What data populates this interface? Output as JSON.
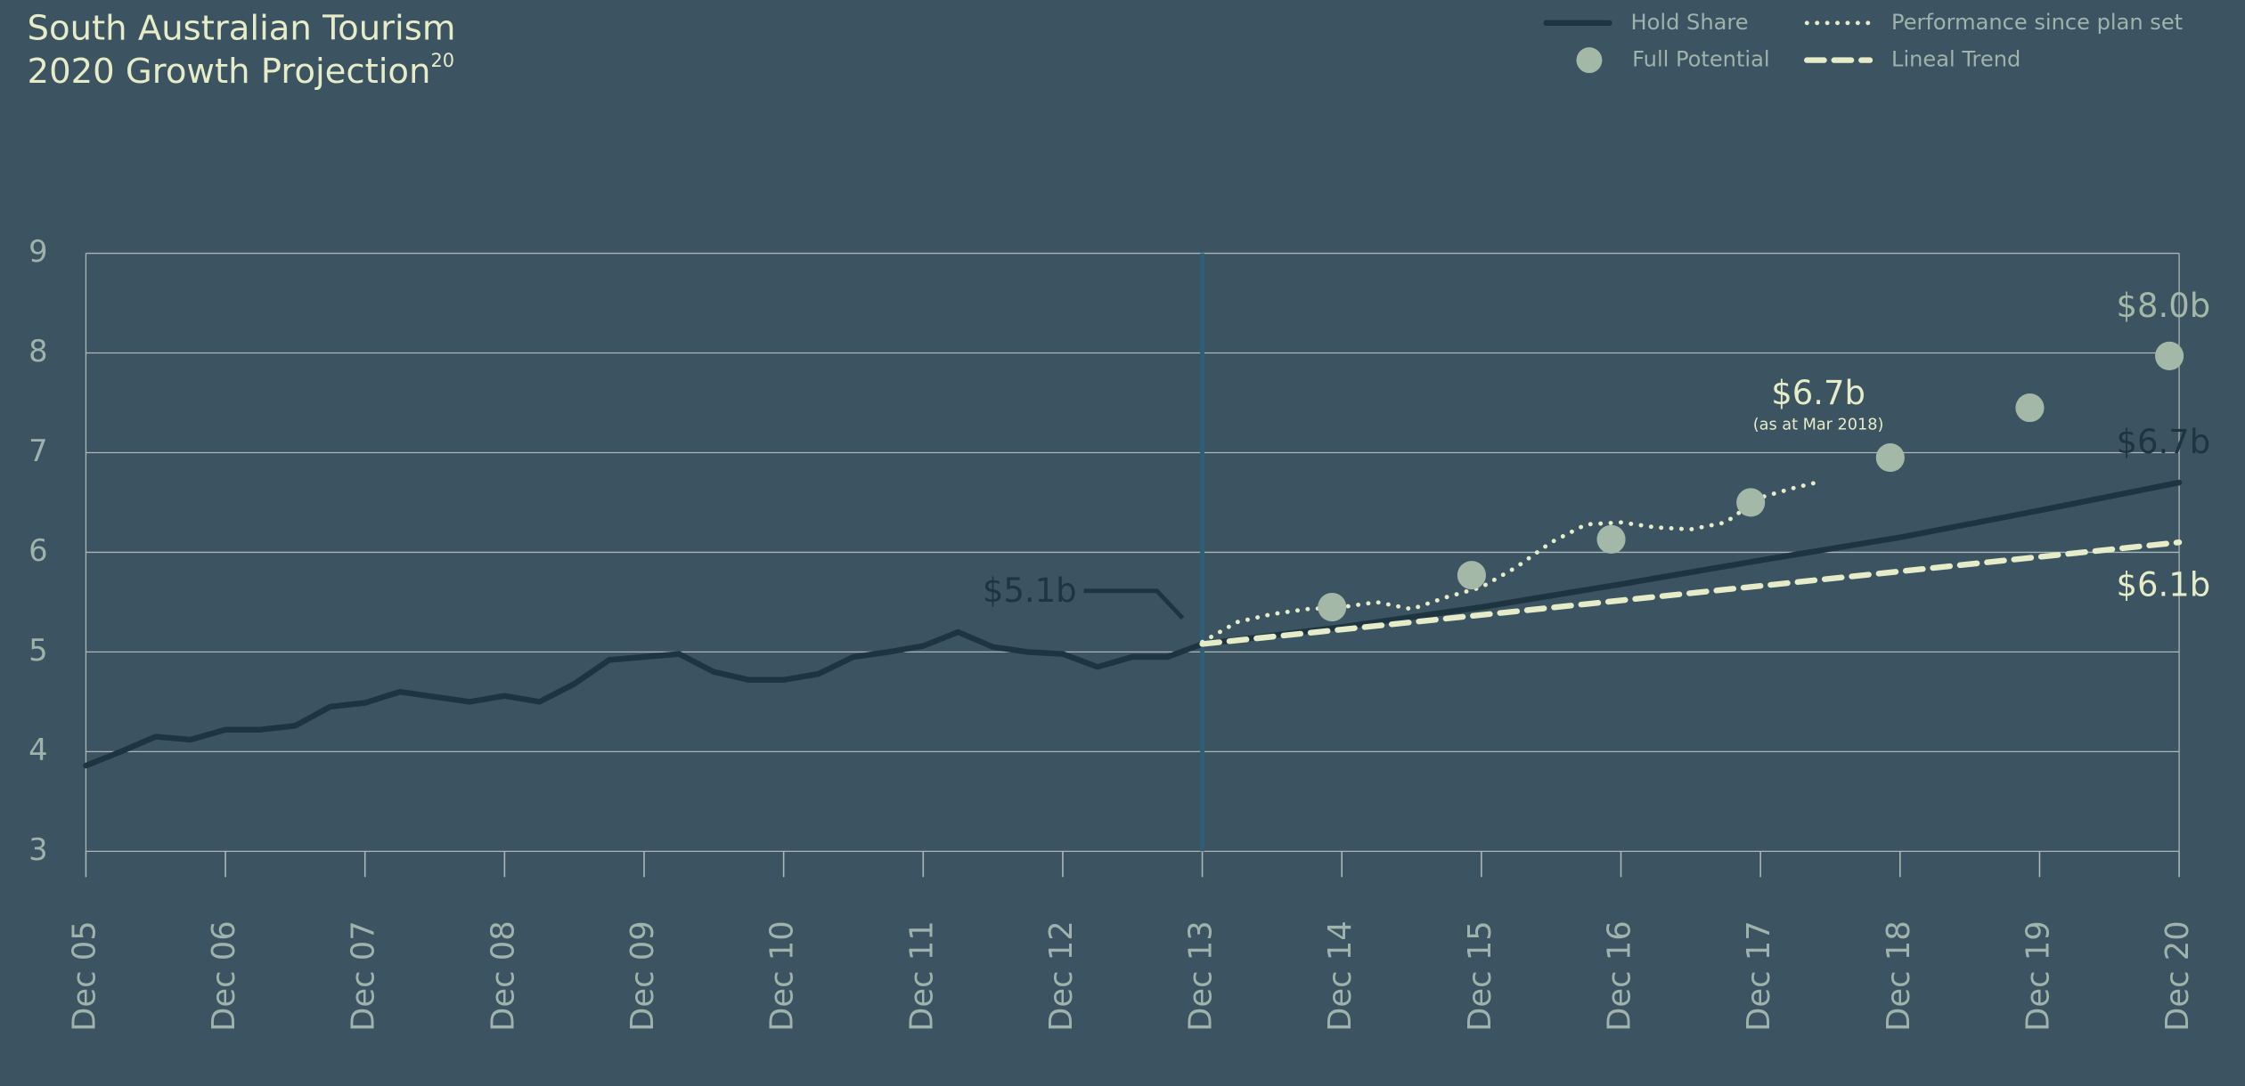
{
  "chart_data": {
    "type": "line",
    "title": "South Australian Tourism",
    "subtitle": "2020 Growth Projection",
    "title_footnote": "20",
    "xlim": [
      2005,
      2020
    ],
    "xticks": [
      {
        "value": 2005,
        "label": "Dec 05"
      },
      {
        "value": 2006,
        "label": "Dec 06"
      },
      {
        "value": 2007,
        "label": "Dec 07"
      },
      {
        "value": 2008,
        "label": "Dec 08"
      },
      {
        "value": 2009,
        "label": "Dec 09"
      },
      {
        "value": 2010,
        "label": "Dec 10"
      },
      {
        "value": 2011,
        "label": "Dec 11"
      },
      {
        "value": 2012,
        "label": "Dec 12"
      },
      {
        "value": 2013,
        "label": "Dec 13"
      },
      {
        "value": 2014,
        "label": "Dec 14"
      },
      {
        "value": 2015,
        "label": "Dec 15"
      },
      {
        "value": 2016,
        "label": "Dec 16"
      },
      {
        "value": 2017,
        "label": "Dec 17"
      },
      {
        "value": 2018,
        "label": "Dec 18"
      },
      {
        "value": 2019,
        "label": "Dec 19"
      },
      {
        "value": 2020,
        "label": "Dec 20"
      }
    ],
    "ylim": [
      3,
      9
    ],
    "yticks": [
      3,
      4,
      5,
      6,
      7,
      8,
      9
    ],
    "grid": true,
    "plan_line_x": 2013,
    "legend": "top-right",
    "series": [
      {
        "name": "Hold Share",
        "style": "solid",
        "color": "#1e3440",
        "x": [
          2005,
          2005.25,
          2005.5,
          2005.75,
          2006,
          2006.25,
          2006.5,
          2006.75,
          2007,
          2007.25,
          2007.5,
          2007.75,
          2008,
          2008.25,
          2008.5,
          2008.75,
          2009,
          2009.25,
          2009.5,
          2009.75,
          2010,
          2010.25,
          2010.5,
          2010.75,
          2011,
          2011.25,
          2011.5,
          2011.75,
          2012,
          2012.25,
          2012.5,
          2012.75,
          2013,
          2014,
          2015,
          2016,
          2017,
          2018,
          2019,
          2020
        ],
        "values": [
          3.86,
          4.0,
          4.15,
          4.12,
          4.22,
          4.22,
          4.26,
          4.45,
          4.49,
          4.6,
          4.55,
          4.5,
          4.56,
          4.5,
          4.68,
          4.92,
          4.95,
          4.98,
          4.8,
          4.72,
          4.72,
          4.78,
          4.95,
          5.0,
          5.06,
          5.2,
          5.05,
          5.0,
          4.98,
          4.85,
          4.95,
          4.95,
          5.08,
          5.25,
          5.45,
          5.68,
          5.92,
          6.15,
          6.42,
          6.7
        ]
      },
      {
        "name": "Performance since plan set",
        "style": "dotted",
        "color": "#e6ecc8",
        "x": [
          2013,
          2013.25,
          2013.5,
          2013.75,
          2014,
          2014.25,
          2014.5,
          2014.75,
          2015,
          2015.25,
          2015.5,
          2015.75,
          2016,
          2016.25,
          2016.5,
          2016.75,
          2017,
          2017.25,
          2017.4
        ],
        "values": [
          5.1,
          5.3,
          5.38,
          5.43,
          5.45,
          5.5,
          5.43,
          5.55,
          5.65,
          5.85,
          6.1,
          6.28,
          6.3,
          6.25,
          6.23,
          6.3,
          6.55,
          6.65,
          6.7
        ]
      },
      {
        "name": "Full Potential",
        "style": "markers",
        "color": "#a4b8a8",
        "x": [
          2013.93,
          2014.93,
          2015.93,
          2016.93,
          2017.93,
          2018.93,
          2019.93
        ],
        "values": [
          5.45,
          5.77,
          6.13,
          6.5,
          6.95,
          7.45,
          7.97
        ]
      },
      {
        "name": "Lineal Trend",
        "style": "dashed",
        "color": "#e6ecc8",
        "x": [
          2013,
          2020
        ],
        "values": [
          5.08,
          6.1
        ]
      }
    ],
    "annotations": [
      {
        "text": "$5.1b",
        "color": "#1e3440"
      },
      {
        "text": "$6.7b",
        "note": "(as at Mar 2018)",
        "color": "#e6ecc8"
      },
      {
        "text": "$8.0b",
        "color": "#a4b8a8"
      },
      {
        "text": "$6.7b",
        "color": "#1e3440"
      },
      {
        "text": "$6.1b",
        "color": "#e6ecc8"
      }
    ]
  }
}
